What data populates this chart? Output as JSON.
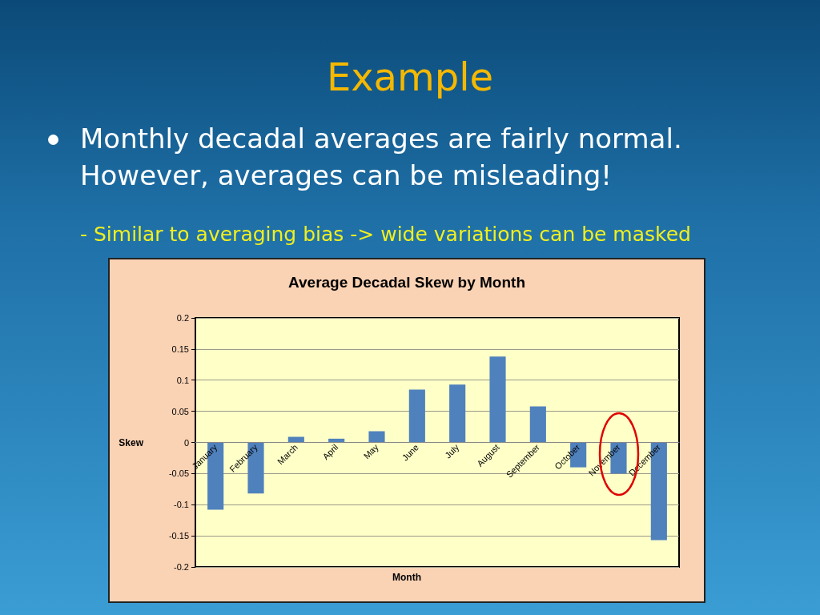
{
  "chart_data": {
    "type": "bar",
    "title": "Average Decadal Skew by Month",
    "annotations": [
      "Example",
      "Monthly decadal averages are fairly normal. However, averages can be misleading!",
      "- Similar to averaging bias -> wide variations can be masked"
    ],
    "xlabel": "Month",
    "ylabel": "Skew",
    "categories": [
      "January",
      "February",
      "March",
      "April",
      "May",
      "June",
      "July",
      "August",
      "September",
      "October",
      "November",
      "December"
    ],
    "values": [
      -0.108,
      -0.082,
      0.009,
      0.006,
      0.018,
      0.085,
      0.093,
      0.138,
      0.058,
      -0.04,
      -0.05,
      -0.157
    ],
    "color": "#4f81bd",
    "ylim": [
      -0.2,
      0.2
    ],
    "yticks": [
      -0.2,
      -0.15,
      -0.1,
      -0.05,
      0,
      0.05,
      0.1,
      0.15,
      0.2
    ],
    "grid": "y"
  }
}
